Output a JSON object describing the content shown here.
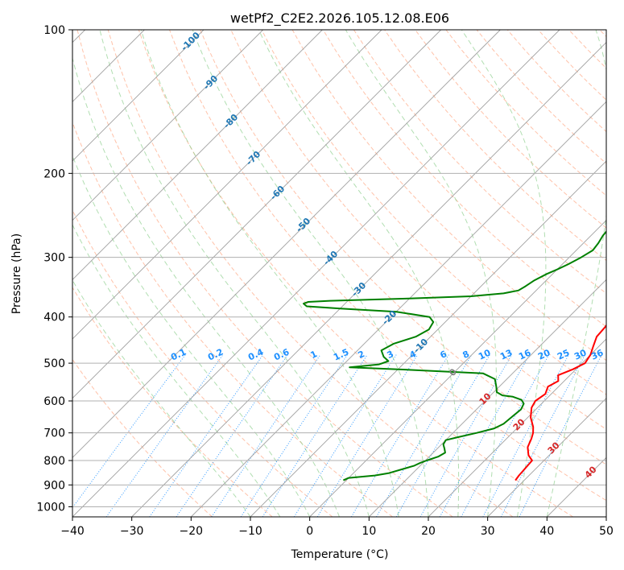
{
  "chart_data": {
    "type": "line",
    "title": "wetPf2_C2E2.2026.105.12.08.E06",
    "xlabel": "Temperature (°C)",
    "ylabel": "Pressure (hPa)",
    "xlim": [
      -40,
      50
    ],
    "ylim": [
      1050,
      100
    ],
    "x_ticks": [
      -40,
      -30,
      -20,
      -10,
      0,
      10,
      20,
      30,
      40,
      50
    ],
    "y_ticks": [
      100,
      200,
      300,
      400,
      500,
      600,
      700,
      800,
      900,
      1000
    ],
    "colors": {
      "temperature": "#ff0000",
      "dewpoint": "#008000",
      "isotherm": "#a0a0a0",
      "dry_adiabat": "#ff9a70",
      "moist_adiabat": "#90d090",
      "mixing_ratio": "#1e90ff",
      "dry_label_cold": "#1f77b4",
      "dry_label_warm": "#d62728",
      "dry_label_zero": "#808080"
    },
    "series": [
      {
        "name": "Temperature",
        "points": [
          [
            28.5,
            880
          ],
          [
            28.3,
            860
          ],
          [
            28.0,
            800
          ],
          [
            26.5,
            780
          ],
          [
            25.0,
            750
          ],
          [
            24.2,
            720
          ],
          [
            23.5,
            700
          ],
          [
            22.5,
            680
          ],
          [
            20.5,
            650
          ],
          [
            19.0,
            620
          ],
          [
            18.5,
            600
          ],
          [
            19.0,
            580
          ],
          [
            18.2,
            560
          ],
          [
            19.0,
            545
          ],
          [
            18.0,
            530
          ],
          [
            19.5,
            515
          ],
          [
            20.5,
            500
          ],
          [
            20.0,
            480
          ],
          [
            19.0,
            460
          ],
          [
            18.0,
            440
          ],
          [
            17.8,
            420
          ],
          [
            17.3,
            400
          ],
          [
            17.0,
            380
          ],
          [
            16.5,
            360
          ],
          [
            15.2,
            340
          ],
          [
            14.0,
            320
          ],
          [
            12.8,
            300
          ],
          [
            11.0,
            280
          ],
          [
            9.5,
            260
          ],
          [
            8.5,
            250
          ],
          [
            7.0,
            240
          ],
          [
            5.8,
            230
          ],
          [
            5.0,
            220
          ],
          [
            4.2,
            210
          ],
          [
            3.5,
            200
          ],
          [
            2.9,
            190
          ],
          [
            2.0,
            180
          ],
          [
            1.5,
            170
          ],
          [
            0.8,
            160
          ],
          [
            0.0,
            150
          ],
          [
            -0.5,
            140
          ],
          [
            -1.0,
            130
          ],
          [
            -0.5,
            125
          ],
          [
            0.5,
            120
          ],
          [
            1.5,
            115
          ],
          [
            2.2,
            110
          ],
          [
            3.0,
            105
          ],
          [
            3.7,
            100
          ]
        ]
      },
      {
        "name": "Dewpoint",
        "points": [
          [
            -0.5,
            880
          ],
          [
            0,
            870
          ],
          [
            4.0,
            860
          ],
          [
            6.0,
            850
          ],
          [
            8.0,
            830
          ],
          [
            9.0,
            820
          ],
          [
            9.5,
            810
          ],
          [
            10.2,
            800
          ],
          [
            11.5,
            785
          ],
          [
            12.0,
            770
          ],
          [
            11.2,
            755
          ],
          [
            10.3,
            740
          ],
          [
            10.0,
            725
          ],
          [
            11.5,
            715
          ],
          [
            14.0,
            700
          ],
          [
            16.2,
            685
          ],
          [
            17.0,
            670
          ],
          [
            17.2,
            650
          ],
          [
            17.5,
            625
          ],
          [
            17.0,
            608
          ],
          [
            16.0,
            597
          ],
          [
            14.0,
            588
          ],
          [
            12.0,
            584
          ],
          [
            10.5,
            575
          ],
          [
            9.5,
            560
          ],
          [
            8.0,
            540
          ],
          [
            5.0,
            525
          ],
          [
            -10.0,
            515
          ],
          [
            -18.5,
            510
          ],
          [
            -14.0,
            503
          ],
          [
            -13.0,
            495
          ],
          [
            -14.5,
            485
          ],
          [
            -16.0,
            470
          ],
          [
            -15.0,
            455
          ],
          [
            -12.5,
            440
          ],
          [
            -11.5,
            425
          ],
          [
            -12.0,
            410
          ],
          [
            -13.5,
            400
          ],
          [
            -20.0,
            390
          ],
          [
            -30.0,
            384
          ],
          [
            -36.0,
            380
          ],
          [
            -37.0,
            375
          ],
          [
            -36.5,
            372
          ],
          [
            -33.0,
            370
          ],
          [
            -20.0,
            366
          ],
          [
            -10.0,
            362
          ],
          [
            -5.0,
            357
          ],
          [
            -3.0,
            352
          ],
          [
            -2.5,
            345
          ],
          [
            -2.0,
            335
          ],
          [
            -1.0,
            325
          ],
          [
            0,
            318
          ],
          [
            1.0,
            310
          ],
          [
            2.0,
            300
          ],
          [
            2.8,
            290
          ],
          [
            2.5,
            280
          ],
          [
            2.0,
            270
          ],
          [
            1.8,
            260
          ],
          [
            2.2,
            250
          ],
          [
            2.5,
            245
          ],
          [
            2.0,
            240
          ],
          [
            1.5,
            232
          ],
          [
            2.5,
            225
          ],
          [
            2.0,
            220
          ],
          [
            1.5,
            210
          ],
          [
            1.8,
            200
          ],
          [
            2.0,
            190
          ],
          [
            1.7,
            180
          ],
          [
            1.0,
            170
          ],
          [
            0.5,
            160
          ],
          [
            -0.2,
            150
          ],
          [
            -0.8,
            140
          ],
          [
            -1.2,
            130
          ],
          [
            -1.0,
            122
          ],
          [
            -1.2,
            118
          ],
          [
            -1.3,
            115
          ],
          [
            -1.5,
            112
          ],
          [
            -1.0,
            108
          ],
          [
            0,
            105
          ],
          [
            1.5,
            100
          ]
        ]
      }
    ],
    "dry_adiabat_labels": [
      "-100",
      "-90",
      "-80",
      "-70",
      "-60",
      "-50",
      "-40",
      "-30",
      "-20",
      "-10",
      "0",
      "10",
      "20",
      "30",
      "40"
    ],
    "mixing_ratio_labels": [
      "0.1",
      "0.2",
      "0.4",
      "0.6",
      "1",
      "1.5",
      "2",
      "3",
      "4",
      "6",
      "8",
      "10",
      "13",
      "16",
      "20",
      "25",
      "30",
      "36"
    ]
  }
}
